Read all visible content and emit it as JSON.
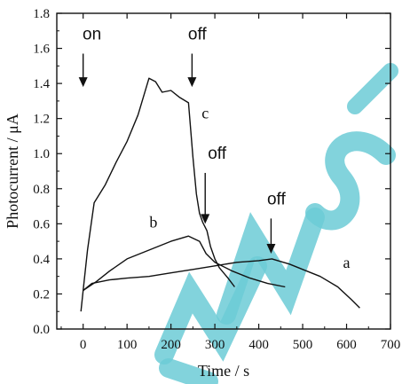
{
  "chart_data": {
    "type": "line",
    "title": "",
    "xlabel": "Time / s",
    "ylabel": "Photocurrent / μA",
    "xlim": [
      -60,
      700
    ],
    "ylim": [
      0.0,
      1.8
    ],
    "xticks": [
      "0",
      "100",
      "200",
      "300",
      "400",
      "500",
      "600",
      "700"
    ],
    "yticks": [
      "0.0",
      "0.2",
      "0.4",
      "0.6",
      "0.8",
      "1.0",
      "1.2",
      "1.4",
      "1.6",
      "1.8"
    ],
    "xtick_values": [
      0,
      100,
      200,
      300,
      400,
      500,
      600,
      700
    ],
    "ytick_values": [
      0.0,
      0.2,
      0.4,
      0.6,
      0.8,
      1.0,
      1.2,
      1.4,
      1.6,
      1.8
    ],
    "grid": false,
    "series": [
      {
        "name": "a",
        "x": [
          0,
          20,
          60,
          100,
          150,
          200,
          250,
          300,
          350,
          400,
          430,
          470,
          500,
          540,
          580,
          610,
          630
        ],
        "y": [
          0.22,
          0.26,
          0.28,
          0.29,
          0.3,
          0.32,
          0.34,
          0.36,
          0.38,
          0.39,
          0.4,
          0.37,
          0.34,
          0.3,
          0.24,
          0.17,
          0.12
        ]
      },
      {
        "name": "b",
        "x": [
          0,
          30,
          60,
          100,
          150,
          200,
          240,
          265,
          280,
          300,
          340,
          380,
          420,
          460
        ],
        "y": [
          0.22,
          0.27,
          0.33,
          0.4,
          0.45,
          0.5,
          0.53,
          0.5,
          0.43,
          0.38,
          0.33,
          0.29,
          0.26,
          0.24
        ]
      },
      {
        "name": "c",
        "x": [
          -5,
          0,
          10,
          25,
          50,
          75,
          100,
          125,
          150,
          165,
          180,
          200,
          220,
          240,
          250,
          258,
          265,
          272,
          282,
          290,
          300,
          310,
          330,
          345
        ],
        "y": [
          0.1,
          0.22,
          0.45,
          0.72,
          0.82,
          0.95,
          1.07,
          1.22,
          1.43,
          1.41,
          1.35,
          1.36,
          1.32,
          1.29,
          0.98,
          0.77,
          0.66,
          0.61,
          0.56,
          0.47,
          0.4,
          0.35,
          0.29,
          0.24
        ]
      }
    ],
    "curve_labels": [
      {
        "text": "a",
        "x": 600,
        "y": 0.35
      },
      {
        "text": "b",
        "x": 160,
        "y": 0.58
      },
      {
        "text": "c",
        "x": 278,
        "y": 1.2
      }
    ],
    "annotations": [
      {
        "text": "on",
        "x": 20,
        "y": 1.65,
        "arrow_x": 0,
        "arrow_from_y": 1.57,
        "arrow_to_y": 1.38
      },
      {
        "text": "off",
        "x": 260,
        "y": 1.65,
        "arrow_x": 248,
        "arrow_from_y": 1.57,
        "arrow_to_y": 1.38
      },
      {
        "text": "off",
        "x": 305,
        "y": 0.97,
        "arrow_x": 278,
        "arrow_from_y": 0.89,
        "arrow_to_y": 0.6
      },
      {
        "text": "off",
        "x": 440,
        "y": 0.71,
        "arrow_x": 428,
        "arrow_from_y": 0.63,
        "arrow_to_y": 0.43
      }
    ],
    "colors": {
      "ink": "#111111",
      "watermark": "#5ec6d3"
    }
  }
}
